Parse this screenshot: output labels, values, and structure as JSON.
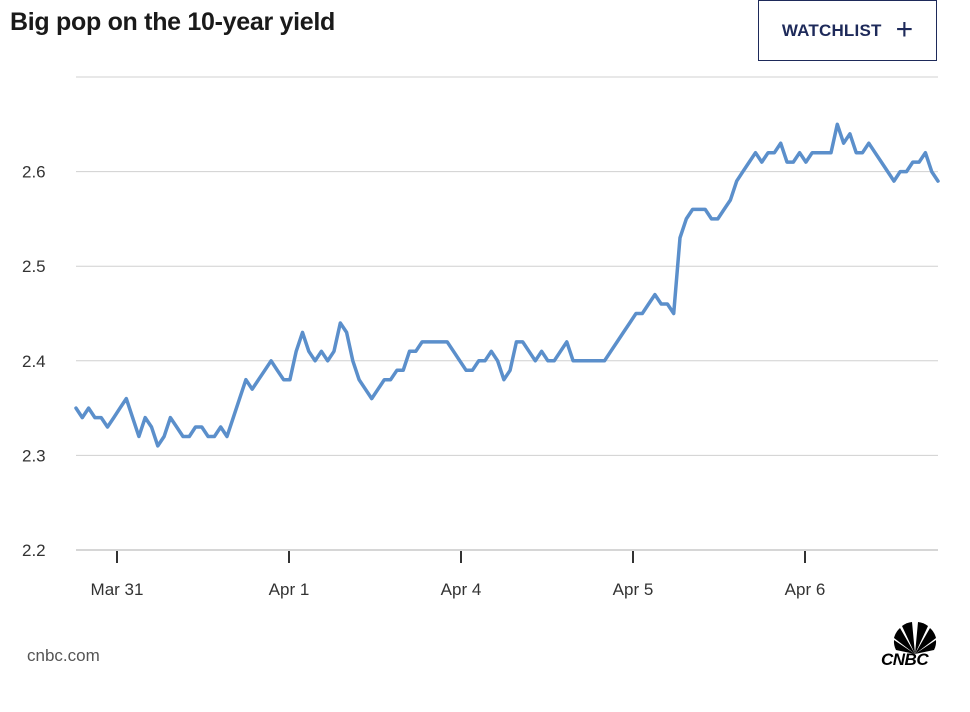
{
  "title": "Big pop on the 10-year yield",
  "watchlist": {
    "label": "WATCHLIST",
    "icon": "plus-icon"
  },
  "footer": {
    "source": "cnbc.com",
    "logo_text": "CNBC",
    "logo_icon": "peacock-icon"
  },
  "colors": {
    "line": "#5b8fcb",
    "grid": "#d0d0d0",
    "axis": "#c8c8c8",
    "text": "#333333",
    "accent": "#1e2a5a"
  },
  "chart_data": {
    "type": "line",
    "title": "Big pop on the 10-year yield",
    "xlabel": "",
    "ylabel": "",
    "ylim": [
      2.2,
      2.7
    ],
    "yticks": [
      2.2,
      2.3,
      2.4,
      2.5,
      2.6
    ],
    "ytick_labels": [
      "2.2",
      "2.3",
      "2.4",
      "2.5",
      "2.6"
    ],
    "xtick_labels": [
      "Mar 31",
      "Apr 1",
      "Apr 4",
      "Apr 5",
      "Apr 6"
    ],
    "grid": true,
    "legend": "none",
    "series": [
      {
        "values": [
          2.35,
          2.34,
          2.35,
          2.34,
          2.34,
          2.33,
          2.34,
          2.35,
          2.36,
          2.34,
          2.32,
          2.34,
          2.33,
          2.31,
          2.32,
          2.34,
          2.33,
          2.32,
          2.32,
          2.33,
          2.33,
          2.32,
          2.32,
          2.33,
          2.32,
          2.34,
          2.36,
          2.38,
          2.37,
          2.38,
          2.39,
          2.4,
          2.39,
          2.38,
          2.38,
          2.41,
          2.43,
          2.41,
          2.4,
          2.41,
          2.4,
          2.41,
          2.44,
          2.43,
          2.4,
          2.38,
          2.37,
          2.36,
          2.37,
          2.38,
          2.38,
          2.39,
          2.39,
          2.41,
          2.41,
          2.42,
          2.42,
          2.42,
          2.42,
          2.42,
          2.41,
          2.4,
          2.39,
          2.39,
          2.4,
          2.4,
          2.41,
          2.4,
          2.38,
          2.39,
          2.42,
          2.42,
          2.41,
          2.4,
          2.41,
          2.4,
          2.4,
          2.41,
          2.42,
          2.4,
          2.4,
          2.4,
          2.4,
          2.4,
          2.4,
          2.41,
          2.42,
          2.43,
          2.44,
          2.45,
          2.45,
          2.46,
          2.47,
          2.46,
          2.46,
          2.45,
          2.53,
          2.55,
          2.56,
          2.56,
          2.56,
          2.55,
          2.55,
          2.56,
          2.57,
          2.59,
          2.6,
          2.61,
          2.62,
          2.61,
          2.62,
          2.62,
          2.63,
          2.61,
          2.61,
          2.62,
          2.61,
          2.62,
          2.62,
          2.62,
          2.62,
          2.65,
          2.63,
          2.64,
          2.62,
          2.62,
          2.63,
          2.62,
          2.61,
          2.6,
          2.59,
          2.6,
          2.6,
          2.61,
          2.61,
          2.62,
          2.6,
          2.59
        ]
      }
    ]
  }
}
